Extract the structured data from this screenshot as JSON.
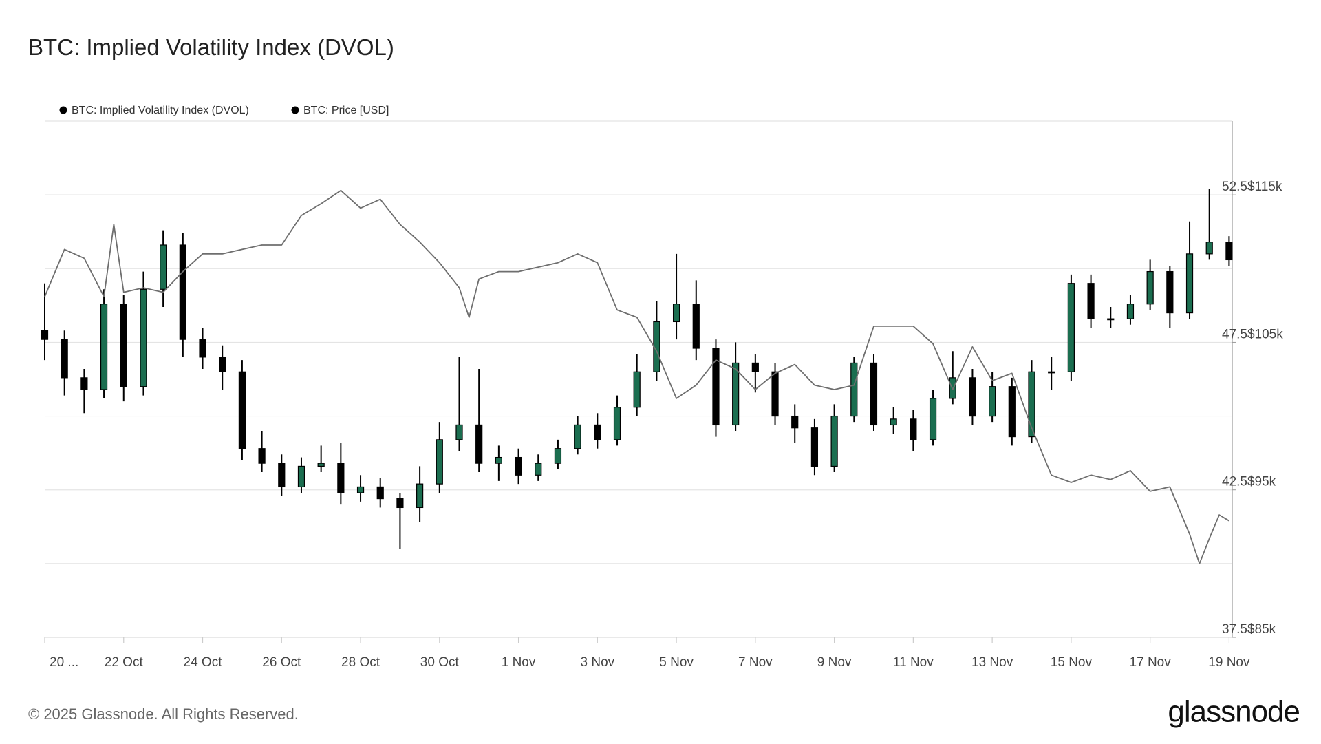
{
  "chart_data": {
    "type": "combo",
    "title": "BTC: Implied Volatility Index (DVOL)",
    "xlim": [
      0,
      30.08
    ],
    "xticks": [
      {
        "value": 0,
        "label": "20 ..."
      },
      {
        "value": 2,
        "label": "22 Oct"
      },
      {
        "value": 4,
        "label": "24 Oct"
      },
      {
        "value": 6,
        "label": "26 Oct"
      },
      {
        "value": 8,
        "label": "28 Oct"
      },
      {
        "value": 10,
        "label": "30 Oct"
      },
      {
        "value": 12,
        "label": "1 Nov"
      },
      {
        "value": 14,
        "label": "3 Nov"
      },
      {
        "value": 16,
        "label": "5 Nov"
      },
      {
        "value": 18,
        "label": "7 Nov"
      },
      {
        "value": 20,
        "label": "9 Nov"
      },
      {
        "value": 22,
        "label": "11 Nov"
      },
      {
        "value": 24,
        "label": "13 Nov"
      },
      {
        "value": 26,
        "label": "15 Nov"
      },
      {
        "value": 28,
        "label": "17 Nov"
      },
      {
        "value": 30,
        "label": "19 Nov"
      }
    ],
    "ylim": [
      37.5,
      55
    ],
    "yticks": [
      37.5,
      42.5,
      47.5,
      52.5
    ],
    "ygrid": [
      40,
      45,
      50
    ],
    "y2lim": [
      85000,
      120000
    ],
    "y2ticks": [
      {
        "value": 85000,
        "label": "$85k"
      },
      {
        "value": 95000,
        "label": "$95k"
      },
      {
        "value": 105000,
        "label": "$105k"
      },
      {
        "value": 115000,
        "label": "$115k"
      }
    ],
    "grid": true,
    "series": [
      {
        "name": "BTC: Implied Volatility Index (DVOL)",
        "type": "candlestick",
        "color": "#000000",
        "up_color": "#1b6e50",
        "x": [
          0,
          0.5,
          1,
          1.5,
          2,
          2.5,
          3,
          3.5,
          4,
          4.5,
          5,
          5.5,
          6,
          6.5,
          7,
          7.5,
          8,
          8.5,
          9,
          9.5,
          10,
          10.5,
          11,
          11.5,
          12,
          12.5,
          13,
          13.5,
          14,
          14.5,
          15,
          15.5,
          16,
          16.5,
          17,
          17.5,
          18,
          18.5,
          19,
          19.5,
          20,
          20.5,
          21,
          21.5,
          22,
          22.5,
          23,
          23.5,
          24,
          24.5,
          25,
          25.5,
          26,
          26.5,
          27,
          27.5,
          28,
          28.5,
          29,
          29.5,
          30
        ],
        "open": [
          47.9,
          47.6,
          46.3,
          45.9,
          48.8,
          46.0,
          49.3,
          50.8,
          47.6,
          47.0,
          46.5,
          43.9,
          43.4,
          42.6,
          43.3,
          43.4,
          42.4,
          42.6,
          42.2,
          41.9,
          42.7,
          44.2,
          44.7,
          43.4,
          43.6,
          43.0,
          43.4,
          43.9,
          44.7,
          44.2,
          45.3,
          46.5,
          48.2,
          48.8,
          47.3,
          44.7,
          46.8,
          46.5,
          45.0,
          44.6,
          43.3,
          45.0,
          46.8,
          44.7,
          44.9,
          44.2,
          45.6,
          46.3,
          45.0,
          46.0,
          44.3,
          46.5,
          46.5,
          49.5,
          48.3,
          48.3,
          48.8,
          49.9,
          48.5,
          50.5,
          50.9
        ],
        "high": [
          49.5,
          47.9,
          46.6,
          49.3,
          49.1,
          49.9,
          51.3,
          51.2,
          48.0,
          47.4,
          46.9,
          44.5,
          43.7,
          43.6,
          44.0,
          44.1,
          43.0,
          42.9,
          42.4,
          43.3,
          44.8,
          47.0,
          46.6,
          44.0,
          43.9,
          43.7,
          44.2,
          45.0,
          45.1,
          45.7,
          47.1,
          48.9,
          50.5,
          49.6,
          47.6,
          47.5,
          47.1,
          46.8,
          45.4,
          44.9,
          45.4,
          47.0,
          47.1,
          45.3,
          45.2,
          45.9,
          47.2,
          46.6,
          46.5,
          46.3,
          46.9,
          47.0,
          49.8,
          49.8,
          48.7,
          49.1,
          50.3,
          50.1,
          51.6,
          52.7,
          51.1
        ],
        "low": [
          46.9,
          45.7,
          45.1,
          45.6,
          45.5,
          45.7,
          48.7,
          47.0,
          46.6,
          45.9,
          43.5,
          43.1,
          42.3,
          42.4,
          43.1,
          42.0,
          42.1,
          41.9,
          40.5,
          41.4,
          42.4,
          43.8,
          43.1,
          42.8,
          42.7,
          42.8,
          43.2,
          43.7,
          43.9,
          44.0,
          45.0,
          46.2,
          47.6,
          46.9,
          44.3,
          44.5,
          45.8,
          44.7,
          44.1,
          43.0,
          43.1,
          44.8,
          44.5,
          44.4,
          43.8,
          44.0,
          45.4,
          44.7,
          44.8,
          44.0,
          44.1,
          45.9,
          46.2,
          48.0,
          48.0,
          48.1,
          48.6,
          48.0,
          48.3,
          50.3,
          50.1
        ],
        "close": [
          47.6,
          46.3,
          45.9,
          48.8,
          46.0,
          49.3,
          50.8,
          47.6,
          47.0,
          46.5,
          43.9,
          43.4,
          42.6,
          43.3,
          43.4,
          42.4,
          42.6,
          42.2,
          41.9,
          42.7,
          44.2,
          44.7,
          43.4,
          43.6,
          43.0,
          43.4,
          43.9,
          44.7,
          44.2,
          45.3,
          46.5,
          48.2,
          48.8,
          47.3,
          44.7,
          46.8,
          46.5,
          45.0,
          44.6,
          43.3,
          45.0,
          46.8,
          44.7,
          44.9,
          44.2,
          45.6,
          46.3,
          45.0,
          46.0,
          44.3,
          46.5,
          46.5,
          49.5,
          48.3,
          48.3,
          48.8,
          49.9,
          48.5,
          50.5,
          50.9,
          50.3
        ]
      },
      {
        "name": "BTC: Price [USD]",
        "type": "line",
        "axis": "y2",
        "color": "#6e6e6e",
        "x": [
          0,
          0.5,
          1,
          1.5,
          1.75,
          2,
          2.5,
          3,
          3.5,
          4,
          4.5,
          5,
          5.5,
          6,
          6.5,
          7,
          7.5,
          8,
          8.5,
          9,
          9.5,
          10,
          10.5,
          10.75,
          11,
          11.5,
          12,
          12.5,
          13,
          13.5,
          14,
          14.5,
          15,
          15.5,
          16,
          16.5,
          17,
          17.5,
          18,
          18.5,
          19,
          19.5,
          20,
          20.5,
          21,
          21.5,
          22,
          22.5,
          23,
          23.5,
          24,
          24.5,
          25,
          25.5,
          26,
          26.5,
          27,
          27.5,
          28,
          28.5,
          29,
          29.25,
          29.5,
          29.75,
          30
        ],
        "values": [
          108100,
          111300,
          110700,
          108100,
          113000,
          108400,
          108700,
          108400,
          109800,
          111000,
          111000,
          111300,
          111600,
          111600,
          113600,
          114400,
          115300,
          114100,
          114700,
          113000,
          111800,
          110400,
          108700,
          106700,
          109300,
          109800,
          109800,
          110100,
          110400,
          111000,
          110400,
          107200,
          106700,
          104400,
          101200,
          102100,
          103800,
          103200,
          101800,
          102900,
          103500,
          102100,
          101800,
          102100,
          106100,
          106100,
          106100,
          104900,
          101800,
          104700,
          102400,
          102900,
          99200,
          96000,
          95500,
          96000,
          95700,
          96300,
          94900,
          95200,
          92000,
          90000,
          91700,
          93300,
          92900
        ]
      }
    ]
  },
  "footer": {
    "copyright": "© 2025 Glassnode. All Rights Reserved.",
    "logo": "glassnode"
  }
}
